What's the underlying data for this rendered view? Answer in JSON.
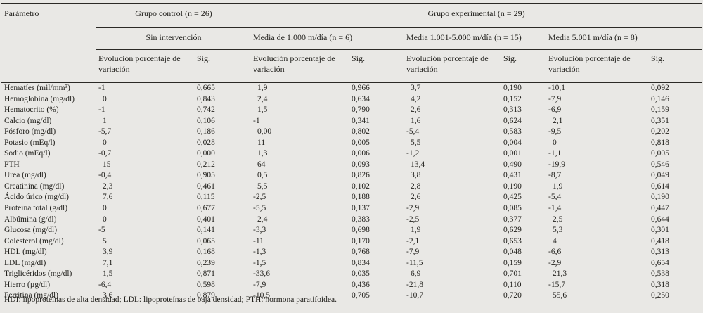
{
  "colors": {
    "background": "#e9e8e5",
    "text": "#23221e",
    "rule": "#2b2a26"
  },
  "table": {
    "col_param_header": "Parámetro",
    "group_headers": [
      {
        "label": "Grupo control (n = 26)"
      },
      {
        "label": "Grupo experimental (n = 29)"
      }
    ],
    "subgroup_headers": [
      "Sin intervención",
      "Media de 1.000 m/día (n = 6)",
      "Media 1.001-5.000 m/día (n = 15)",
      "Media 5.001 m/día (n = 8)"
    ],
    "measure_headers": {
      "evolution": "Evolución porcentaje de variación",
      "sig": "Sig."
    },
    "rows": [
      {
        "param": "Hematíes (mil/mm³)",
        "values": [
          "-1",
          "0,665",
          "1,9",
          "0,966",
          "3,7",
          "0,190",
          "-10,1",
          "0,092"
        ]
      },
      {
        "param": "Hemoglobina (mg/dl)",
        "values": [
          "0",
          "0,843",
          "2,4",
          "0,634",
          "4,2",
          "0,152",
          "-7,9",
          "0,146"
        ]
      },
      {
        "param": "Hematocrito (%)",
        "values": [
          "-1",
          "0,742",
          "1,5",
          "0,790",
          "2,6",
          "0,313",
          "-6,9",
          "0,159"
        ]
      },
      {
        "param": "Calcio (mg/dl)",
        "values": [
          "1",
          "0,106",
          "-1",
          "0,341",
          "1,6",
          "0,624",
          "2,1",
          "0,351"
        ]
      },
      {
        "param": "Fósforo (mg/dl)",
        "values": [
          "-5,7",
          "0,186",
          "0,00",
          "0,802",
          "-5,4",
          "0,583",
          "-9,5",
          "0,202"
        ]
      },
      {
        "param": "Potasio (mEq/l)",
        "values": [
          "0",
          "0,028",
          "11",
          "0,005",
          "5,5",
          "0,004",
          "0",
          "0,818"
        ]
      },
      {
        "param": "Sodio (mEq/l)",
        "values": [
          "-0,7",
          "0,000",
          "1,3",
          "0,006",
          "-1,2",
          "0,001",
          "-1,1",
          "0,005"
        ]
      },
      {
        "param": "PTH",
        "values": [
          "15",
          "0,212",
          "64",
          "0,093",
          "13,4",
          "0,490",
          "-19,9",
          "0,546"
        ]
      },
      {
        "param": "Urea (mg/dl)",
        "values": [
          "-0,4",
          "0,905",
          "0,5",
          "0,826",
          "3,8",
          "0,431",
          "-8,7",
          "0,049"
        ]
      },
      {
        "param": "Creatinina (mg/dl)",
        "values": [
          "2,3",
          "0,461",
          "5,5",
          "0,102",
          "2,8",
          "0,190",
          "1,9",
          "0,614"
        ]
      },
      {
        "param": "Ácido úrico (mg/dl)",
        "values": [
          "7,6",
          "0,115",
          "-2,5",
          "0,188",
          "2,6",
          "0,425",
          "-5,4",
          "0,190"
        ]
      },
      {
        "param": "Proteína total (g/dl)",
        "values": [
          "0",
          "0,677",
          "-5,5",
          "0,137",
          "-2,9",
          "0,085",
          "-1,4",
          "0,447"
        ]
      },
      {
        "param": "Albúmina (g/dl)",
        "values": [
          "0",
          "0,401",
          "2,4",
          "0,383",
          "-2,5",
          "0,377",
          "2,5",
          "0,644"
        ]
      },
      {
        "param": "Glucosa (mg/dl)",
        "values": [
          "-5",
          "0,141",
          "-3,3",
          "0,698",
          "1,9",
          "0,629",
          "5,3",
          "0,301"
        ]
      },
      {
        "param": "Colesterol (mg/dl)",
        "values": [
          "5",
          "0,065",
          "-11",
          "0,170",
          "-2,1",
          "0,653",
          "4",
          "0,418"
        ]
      },
      {
        "param": "HDL (mg/dl)",
        "values": [
          "3,9",
          "0,168",
          "-1,3",
          "0,768",
          "-7,9",
          "0,048",
          "-6,6",
          "0,313"
        ]
      },
      {
        "param": "LDL (mg/dl)",
        "values": [
          "7,1",
          "0,239",
          "-1,5",
          "0,834",
          "-11,5",
          "0,159",
          "-2,9",
          "0,654"
        ]
      },
      {
        "param": "Triglicéridos (mg/dl)",
        "values": [
          "1,5",
          "0,871",
          "-33,6",
          "0,035",
          "6,9",
          "0,701",
          "21,3",
          "0,538"
        ]
      },
      {
        "param": "Hierro (µg/dl)",
        "values": [
          "-6,4",
          "0,598",
          "-7,9",
          "0,436",
          "-21,8",
          "0,110",
          "-15,7",
          "0,318"
        ]
      },
      {
        "param": "Ferritina (mg/dl)",
        "values": [
          "3,6",
          "0,879",
          "-10,5",
          "0,705",
          "-10,7",
          "0,720",
          "55,6",
          "0,250"
        ]
      }
    ],
    "footnote": "HDI: lipoproteínas de alta densidad; LDL: lipoproteínas de baja densidad; PTH: hormona paratifoidea."
  }
}
